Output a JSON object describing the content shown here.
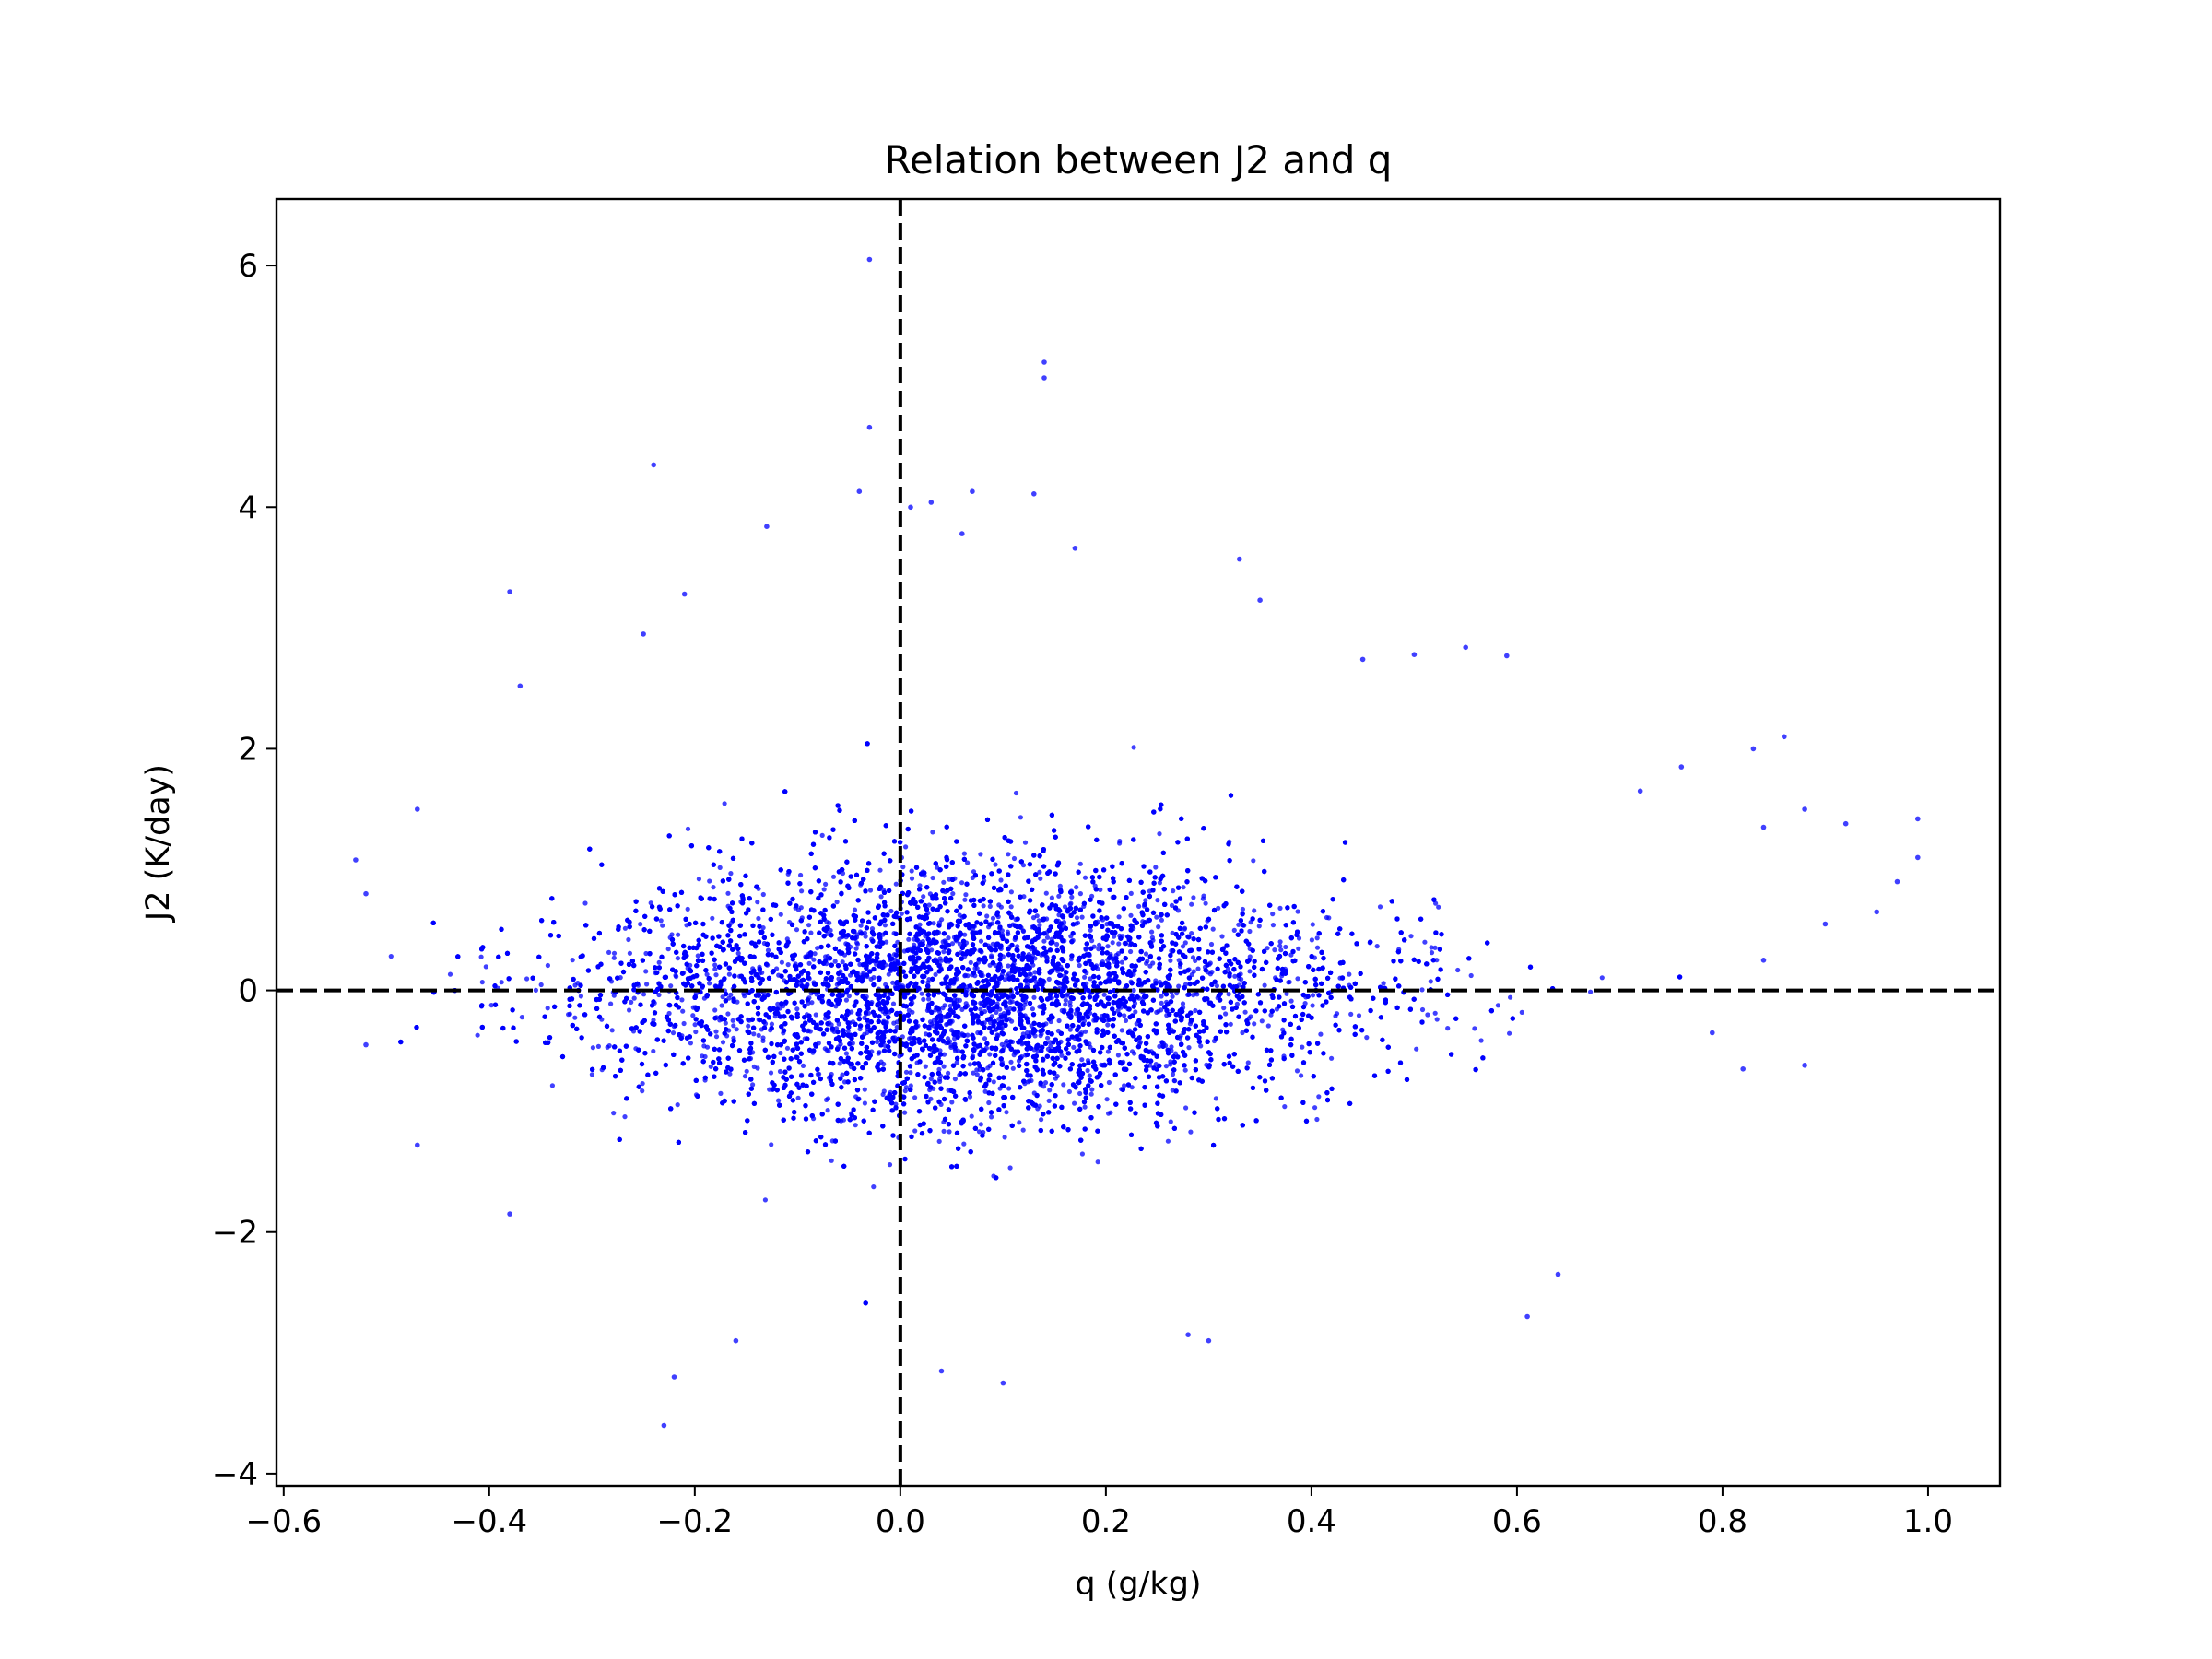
{
  "chart_data": {
    "type": "scatter",
    "title": "Relation between J2 and q",
    "xlabel": "q (g/kg)",
    "ylabel": "J2 (K/day)",
    "xlim": [
      -0.607,
      1.07
    ],
    "ylim": [
      -4.1,
      6.55
    ],
    "xticks": [
      -0.6,
      -0.4,
      -0.2,
      0.0,
      0.2,
      0.4,
      0.6,
      0.8,
      1.0
    ],
    "xtick_labels": [
      "−0.6",
      "−0.4",
      "−0.2",
      "0.0",
      "0.2",
      "0.4",
      "0.6",
      "0.8",
      "1.0"
    ],
    "yticks": [
      -4,
      -2,
      0,
      2,
      4,
      6
    ],
    "ytick_labels": [
      "−4",
      "−2",
      "0",
      "2",
      "4",
      "6"
    ],
    "grid": false,
    "marker_color": "#0000ff",
    "reference_lines": [
      {
        "orientation": "vertical",
        "x": 0,
        "style": "dashed",
        "color": "#000000"
      },
      {
        "orientation": "horizontal",
        "y": 0,
        "style": "dashed",
        "color": "#000000"
      }
    ],
    "cloud": {
      "x_mean": 0.07,
      "x_std": 0.18,
      "y_mean": 0.0,
      "y_std": 0.55,
      "x_range": [
        -0.53,
        1.0
      ],
      "y_range": [
        -3.6,
        6.05
      ]
    },
    "outliers": [
      {
        "x": -0.03,
        "y": 6.05
      },
      {
        "x": 0.14,
        "y": 5.2
      },
      {
        "x": 0.14,
        "y": 5.07
      },
      {
        "x": -0.03,
        "y": 4.66
      },
      {
        "x": -0.24,
        "y": 4.35
      },
      {
        "x": -0.04,
        "y": 4.13
      },
      {
        "x": 0.13,
        "y": 4.11
      },
      {
        "x": 0.07,
        "y": 4.13
      },
      {
        "x": 0.03,
        "y": 4.04
      },
      {
        "x": 0.01,
        "y": 4.0
      },
      {
        "x": 0.06,
        "y": 3.78
      },
      {
        "x": 0.17,
        "y": 3.66
      },
      {
        "x": -0.13,
        "y": 3.84
      },
      {
        "x": -0.38,
        "y": 3.3
      },
      {
        "x": 0.33,
        "y": 3.57
      },
      {
        "x": 0.35,
        "y": 3.23
      },
      {
        "x": -0.21,
        "y": 3.28
      },
      {
        "x": 0.45,
        "y": 2.74
      },
      {
        "x": 0.55,
        "y": 2.84
      },
      {
        "x": 0.59,
        "y": 2.77
      },
      {
        "x": 0.5,
        "y": 2.78
      },
      {
        "x": -0.23,
        "y": -3.6
      },
      {
        "x": -0.22,
        "y": -3.2
      },
      {
        "x": 0.1,
        "y": -3.25
      },
      {
        "x": 0.04,
        "y": -3.15
      },
      {
        "x": 0.61,
        "y": -2.7
      },
      {
        "x": 0.64,
        "y": -2.35
      },
      {
        "x": 0.28,
        "y": -2.85
      },
      {
        "x": 0.3,
        "y": -2.9
      },
      {
        "x": -0.16,
        "y": -2.9
      },
      {
        "x": 0.86,
        "y": 2.1
      },
      {
        "x": 0.83,
        "y": 2.0
      },
      {
        "x": 0.99,
        "y": 1.42
      },
      {
        "x": 0.99,
        "y": 1.1
      },
      {
        "x": 0.92,
        "y": 1.38
      },
      {
        "x": 0.88,
        "y": 1.5
      },
      {
        "x": 0.84,
        "y": 1.35
      },
      {
        "x": 0.9,
        "y": 0.55
      },
      {
        "x": 0.97,
        "y": 0.9
      },
      {
        "x": 0.95,
        "y": 0.65
      },
      {
        "x": 0.88,
        "y": -0.62
      },
      {
        "x": 0.82,
        "y": -0.65
      },
      {
        "x": 0.84,
        "y": 0.25
      },
      {
        "x": 0.79,
        "y": -0.35
      },
      {
        "x": 0.76,
        "y": 1.85
      },
      {
        "x": 0.72,
        "y": 1.65
      },
      {
        "x": -0.53,
        "y": 1.08
      },
      {
        "x": -0.52,
        "y": 0.8
      },
      {
        "x": -0.47,
        "y": 1.5
      },
      {
        "x": -0.47,
        "y": -1.28
      },
      {
        "x": -0.38,
        "y": -1.85
      },
      {
        "x": -0.37,
        "y": 2.52
      },
      {
        "x": -0.25,
        "y": 2.95
      },
      {
        "x": -0.52,
        "y": -0.45
      }
    ]
  }
}
